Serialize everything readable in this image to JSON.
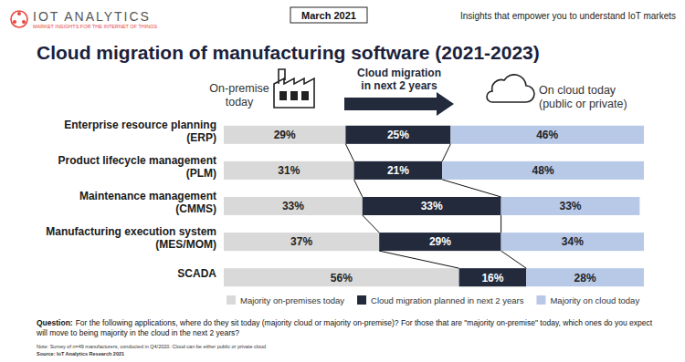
{
  "header": {
    "logo": "IOT ANALYTICS",
    "tagline": "MARKET INSIGHTS FOR THE INTERNET OF THINGS",
    "date": "March 2021",
    "slogan": "Insights that empower you to understand IoT markets"
  },
  "chart_data": {
    "type": "bar",
    "orientation": "horizontal",
    "stacked": true,
    "data_labels": true,
    "tick_labels": "y",
    "legend": "bottom",
    "title": "Cloud migration of manufacturing software (2021-2023)",
    "annotations": [
      [
        "On-premise",
        "today"
      ],
      [
        "Cloud migration",
        "in next 2 years"
      ],
      [
        "On cloud today",
        "(public or private)"
      ]
    ],
    "categories": [
      "Enterprise resource planning (ERP)",
      "Product lifecycle management (PLM)",
      "Maintenance management (CMMS)",
      "Manufacturing execution system (MES/MOM)",
      "SCADA"
    ],
    "xlim": [
      0,
      100
    ],
    "series": [
      {
        "name": "Majority on-premises today",
        "color": "#d9d9d9",
        "values": [
          29,
          31,
          33,
          37,
          56
        ],
        "value_labels": [
          "29%",
          "31%",
          "33%",
          "37%",
          "56%"
        ]
      },
      {
        "name": "Cloud migration planned in next 2 years",
        "color": "#222a3c",
        "values": [
          25,
          21,
          33,
          29,
          16
        ],
        "value_labels": [
          "25%",
          "21%",
          "33%",
          "29%",
          "16%"
        ]
      },
      {
        "name": "Majority on cloud today",
        "color": "#b8c9e8",
        "values": [
          46,
          48,
          33,
          34,
          28
        ],
        "value_labels": [
          "46%",
          "48%",
          "33%",
          "34%",
          "28%"
        ]
      }
    ]
  },
  "footer": {
    "question_label": "Question:",
    "question": [
      "For the following applications, where do they sit today (majority cloud or majority on-premise)? For those that are \"majority on-premise\" today, which ones do you expect",
      "will move to being majority in the cloud in the next 2 years?"
    ],
    "note": "Note: Survey of n=49 manufacturers, conducted in Q4/2020. Cloud can be either public or private cloud",
    "source": "Source: IoT Analytics Research 2021"
  }
}
